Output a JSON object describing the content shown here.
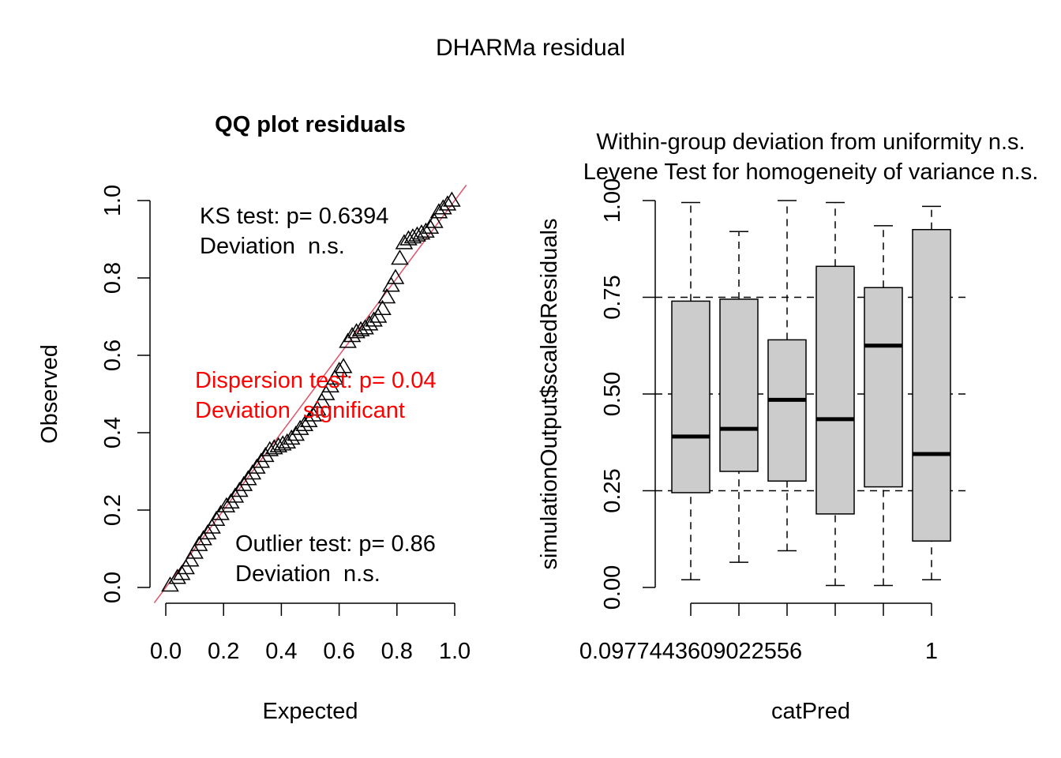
{
  "title": "DHARMa residual",
  "colors": {
    "axis": "#000000",
    "refline": "#df536b",
    "significant": "#ff0000",
    "boxfill": "#cccccc"
  },
  "chart_data": [
    {
      "type": "scatter",
      "title": "QQ plot residuals",
      "xlabel": "Expected",
      "ylabel": "Observed",
      "xlim": [
        0,
        1
      ],
      "ylim": [
        0,
        1
      ],
      "xticks": [
        "0.0",
        "0.2",
        "0.4",
        "0.6",
        "0.8",
        "1.0"
      ],
      "yticks": [
        "0.0",
        "0.2",
        "0.4",
        "0.6",
        "0.8",
        "1.0"
      ],
      "marker": "triangle",
      "x": [
        0.015,
        0.04,
        0.055,
        0.07,
        0.085,
        0.1,
        0.115,
        0.13,
        0.145,
        0.16,
        0.175,
        0.19,
        0.21,
        0.225,
        0.24,
        0.255,
        0.27,
        0.285,
        0.3,
        0.315,
        0.33,
        0.345,
        0.36,
        0.375,
        0.39,
        0.405,
        0.42,
        0.435,
        0.45,
        0.465,
        0.48,
        0.495,
        0.51,
        0.525,
        0.54,
        0.555,
        0.57,
        0.585,
        0.6,
        0.615,
        0.63,
        0.645,
        0.66,
        0.675,
        0.69,
        0.705,
        0.72,
        0.735,
        0.75,
        0.765,
        0.78,
        0.795,
        0.81,
        0.825,
        0.84,
        0.855,
        0.87,
        0.885,
        0.9,
        0.915,
        0.93,
        0.945,
        0.96,
        0.975,
        0.99
      ],
      "y": [
        0.005,
        0.025,
        0.035,
        0.05,
        0.07,
        0.09,
        0.11,
        0.125,
        0.14,
        0.155,
        0.175,
        0.19,
        0.21,
        0.22,
        0.235,
        0.25,
        0.265,
        0.28,
        0.295,
        0.31,
        0.325,
        0.34,
        0.355,
        0.36,
        0.365,
        0.37,
        0.375,
        0.385,
        0.395,
        0.41,
        0.42,
        0.43,
        0.445,
        0.46,
        0.48,
        0.5,
        0.52,
        0.54,
        0.56,
        0.57,
        0.635,
        0.65,
        0.66,
        0.665,
        0.67,
        0.68,
        0.69,
        0.7,
        0.72,
        0.75,
        0.78,
        0.8,
        0.85,
        0.89,
        0.9,
        0.905,
        0.91,
        0.915,
        0.92,
        0.93,
        0.945,
        0.97,
        0.98,
        0.99,
        1.0
      ],
      "reference_line": {
        "slope": 1,
        "intercept": 0
      },
      "annotations": [
        {
          "lines": [
            "KS test: p= 0.6394",
            "Deviation  n.s."
          ],
          "significant": false
        },
        {
          "lines": [
            "Dispersion test: p= 0.04",
            "Deviation  significant"
          ],
          "significant": true
        },
        {
          "lines": [
            "Outlier test: p= 0.86",
            "Deviation  n.s."
          ],
          "significant": false
        }
      ]
    },
    {
      "type": "box",
      "title": [
        "Within-group deviation from uniformity n.s.",
        "Levene Test for homogeneity of variance n.s."
      ],
      "xlabel": "catPred",
      "ylabel": "simulationOutput$scaledResiduals",
      "ylim": [
        0,
        1
      ],
      "yticks": [
        "0.00",
        "0.25",
        "0.50",
        "0.75",
        "1.00"
      ],
      "xtick_labels": [
        "0.0977443609022556",
        "",
        "",
        "",
        "",
        "1"
      ],
      "hlines": [
        0.25,
        0.5,
        0.75
      ],
      "boxes": [
        {
          "whisker_low": 0.02,
          "q1": 0.245,
          "median": 0.39,
          "q3": 0.74,
          "whisker_high": 0.995
        },
        {
          "whisker_low": 0.065,
          "q1": 0.3,
          "median": 0.41,
          "q3": 0.745,
          "whisker_high": 0.92
        },
        {
          "whisker_low": 0.095,
          "q1": 0.275,
          "median": 0.485,
          "q3": 0.64,
          "whisker_high": 1.0
        },
        {
          "whisker_low": 0.005,
          "q1": 0.19,
          "median": 0.435,
          "q3": 0.83,
          "whisker_high": 0.995
        },
        {
          "whisker_low": 0.005,
          "q1": 0.26,
          "median": 0.625,
          "q3": 0.775,
          "whisker_high": 0.935
        },
        {
          "whisker_low": 0.02,
          "q1": 0.12,
          "median": 0.345,
          "q3": 0.925,
          "whisker_high": 0.985
        }
      ]
    }
  ]
}
